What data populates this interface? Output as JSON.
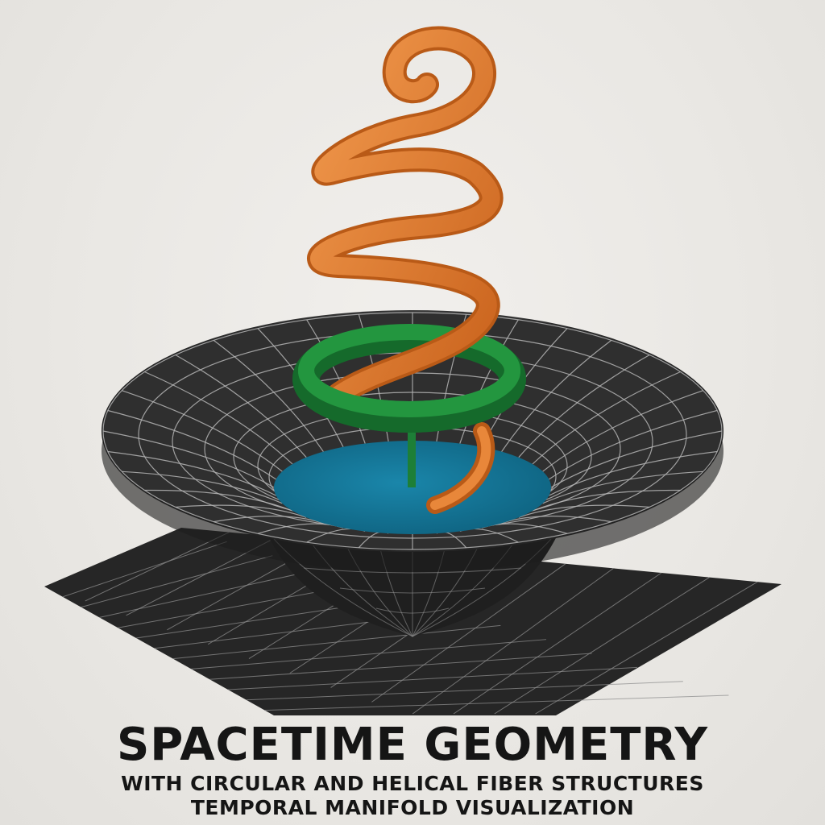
{
  "title": "SPACETIME GEOMETRY",
  "subtitle_line1": "WITH CIRCULAR AND HELICAL FIBER STRUCTURES",
  "subtitle_line2": "TEMPORAL MANIFOLD VISUALIZATION",
  "colors": {
    "helix": "#e07a2c",
    "helix_shade": "#b95a17",
    "ring": "#1f8a3c",
    "ring_shade": "#156a2b",
    "disk": "#13789b",
    "funnel": "#2c2c2c",
    "sheet": "#262626",
    "grid_line": "#9a9a9a",
    "text": "#151515"
  }
}
